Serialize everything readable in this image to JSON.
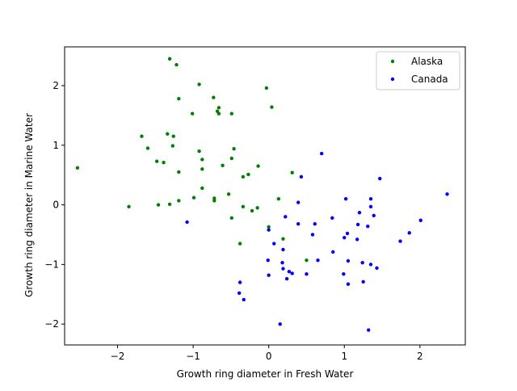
{
  "chart_data": {
    "type": "scatter",
    "xlabel": "Growth ring diameter in Fresh Water",
    "ylabel": "Growth ring diameter in Marine Water",
    "xlim": [
      -2.7,
      2.6
    ],
    "ylim": [
      -2.35,
      2.65
    ],
    "xticks": [
      -2,
      -1,
      0,
      1,
      2
    ],
    "yticks": [
      -2,
      -1,
      0,
      1,
      2
    ],
    "grid": false,
    "legend_position": "top-right",
    "series": [
      {
        "name": "Alaska",
        "color": "#008000",
        "points": [
          [
            -2.53,
            0.62
          ],
          [
            -1.85,
            -0.03
          ],
          [
            -1.68,
            1.15
          ],
          [
            -1.6,
            0.95
          ],
          [
            -1.48,
            0.73
          ],
          [
            -1.46,
            0.0
          ],
          [
            -1.39,
            0.71
          ],
          [
            -1.34,
            1.19
          ],
          [
            -1.31,
            2.45
          ],
          [
            -1.31,
            0.01
          ],
          [
            -1.27,
            0.99
          ],
          [
            -1.26,
            1.15
          ],
          [
            -1.22,
            2.35
          ],
          [
            -1.19,
            1.78
          ],
          [
            -1.19,
            0.55
          ],
          [
            -1.19,
            0.07
          ],
          [
            -1.01,
            1.53
          ],
          [
            -0.99,
            0.12
          ],
          [
            -0.92,
            2.02
          ],
          [
            -0.92,
            0.9
          ],
          [
            -0.88,
            0.76
          ],
          [
            -0.88,
            0.6
          ],
          [
            -0.88,
            0.28
          ],
          [
            -0.73,
            1.8
          ],
          [
            -0.72,
            0.11
          ],
          [
            -0.72,
            0.07
          ],
          [
            -0.68,
            1.57
          ],
          [
            -0.66,
            1.63
          ],
          [
            -0.66,
            1.53
          ],
          [
            -0.61,
            0.66
          ],
          [
            -0.53,
            0.18
          ],
          [
            -0.49,
            1.53
          ],
          [
            -0.49,
            0.78
          ],
          [
            -0.49,
            -0.22
          ],
          [
            -0.46,
            0.94
          ],
          [
            -0.38,
            -0.65
          ],
          [
            -0.34,
            0.47
          ],
          [
            -0.34,
            -0.03
          ],
          [
            -0.27,
            0.51
          ],
          [
            -0.22,
            -0.1
          ],
          [
            -0.14,
            0.65
          ],
          [
            -0.15,
            -0.05
          ],
          [
            -0.03,
            1.96
          ],
          [
            0.0,
            -0.37
          ],
          [
            0.04,
            1.64
          ],
          [
            0.13,
            0.1
          ],
          [
            0.19,
            -0.57
          ],
          [
            0.31,
            0.54
          ],
          [
            0.5,
            -0.93
          ]
        ]
      },
      {
        "name": "Canada",
        "color": "#0000ff",
        "points": [
          [
            -1.08,
            -0.29
          ],
          [
            -0.38,
            -1.3
          ],
          [
            -0.39,
            -1.48
          ],
          [
            -0.33,
            -1.59
          ],
          [
            -0.01,
            -0.93
          ],
          [
            0.0,
            -1.18
          ],
          [
            0.0,
            -0.42
          ],
          [
            0.07,
            -0.65
          ],
          [
            0.15,
            -2.0
          ],
          [
            0.18,
            -0.97
          ],
          [
            0.19,
            -0.75
          ],
          [
            0.19,
            -1.07
          ],
          [
            0.22,
            -0.2
          ],
          [
            0.24,
            -1.24
          ],
          [
            0.27,
            -1.12
          ],
          [
            0.31,
            -1.15
          ],
          [
            0.39,
            0.04
          ],
          [
            0.39,
            -0.32
          ],
          [
            0.43,
            0.47
          ],
          [
            0.5,
            -1.16
          ],
          [
            0.58,
            -0.5
          ],
          [
            0.61,
            -0.32
          ],
          [
            0.65,
            -0.93
          ],
          [
            0.7,
            0.86
          ],
          [
            0.84,
            -0.22
          ],
          [
            0.85,
            -0.79
          ],
          [
            0.99,
            -1.16
          ],
          [
            1.0,
            -0.55
          ],
          [
            1.02,
            0.1
          ],
          [
            1.04,
            -0.48
          ],
          [
            1.05,
            -0.94
          ],
          [
            1.05,
            -1.33
          ],
          [
            1.17,
            -0.58
          ],
          [
            1.18,
            -0.33
          ],
          [
            1.2,
            -0.13
          ],
          [
            1.24,
            -0.97
          ],
          [
            1.25,
            -1.29
          ],
          [
            1.31,
            -0.36
          ],
          [
            1.32,
            -2.1
          ],
          [
            1.35,
            0.1
          ],
          [
            1.35,
            -0.03
          ],
          [
            1.35,
            -1.0
          ],
          [
            1.39,
            -0.18
          ],
          [
            1.43,
            -1.06
          ],
          [
            1.47,
            0.44
          ],
          [
            1.74,
            -0.61
          ],
          [
            1.86,
            -0.47
          ],
          [
            2.01,
            -0.26
          ],
          [
            2.36,
            0.18
          ]
        ]
      }
    ]
  }
}
